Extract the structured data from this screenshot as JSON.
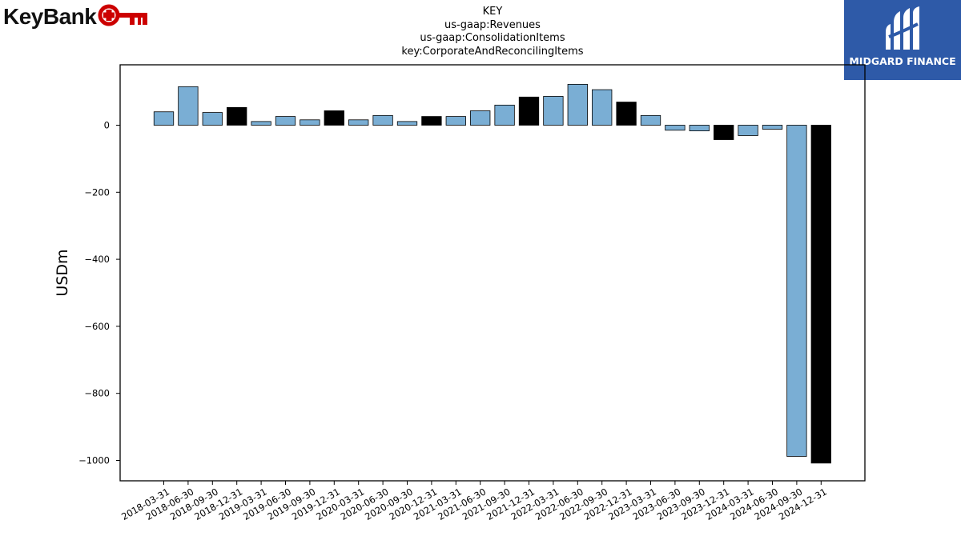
{
  "logos": {
    "left_text": "KeyBank",
    "right_text": "MIDGARD FINANCE",
    "right_bg": "#2e5aa8",
    "left_accent": "#cc0000"
  },
  "chart_data": {
    "type": "bar",
    "title_lines": [
      "KEY",
      "us-gaap:Revenues",
      "us-gaap:ConsolidationItems",
      "key:CorporateAndReconcilingItems"
    ],
    "ylabel": "USDm",
    "xlabel": "",
    "ylim": [
      -1060,
      180
    ],
    "yticks": [
      0,
      -200,
      -400,
      -600,
      -800,
      -1000
    ],
    "ytick_labels": [
      "0",
      "−200",
      "−400",
      "−600",
      "−800",
      "−1000"
    ],
    "grid": false,
    "colors": {
      "quarter": "#7aaed4",
      "year_end": "#000000"
    },
    "categories": [
      "2018-03-31",
      "2018-06-30",
      "2018-09-30",
      "2018-12-31",
      "2019-03-31",
      "2019-06-30",
      "2019-09-30",
      "2019-12-31",
      "2020-03-31",
      "2020-06-30",
      "2020-09-30",
      "2020-12-31",
      "2021-03-31",
      "2021-06-30",
      "2021-09-30",
      "2021-12-31",
      "2022-03-31",
      "2022-06-30",
      "2022-09-30",
      "2022-12-31",
      "2023-03-31",
      "2023-06-30",
      "2023-09-30",
      "2023-12-31",
      "2024-03-31",
      "2024-06-30",
      "2024-09-30",
      "2024-12-31"
    ],
    "values": [
      40,
      115,
      38,
      53,
      11,
      26,
      16,
      43,
      16,
      29,
      11,
      26,
      26,
      43,
      60,
      84,
      86,
      122,
      106,
      69,
      29,
      -15,
      -17,
      -43,
      -31,
      -12,
      -988,
      -1008
    ]
  }
}
